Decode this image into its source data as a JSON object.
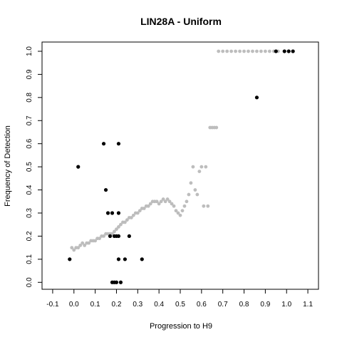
{
  "chart_data": {
    "type": "scatter",
    "title": "LIN28A - Uniform",
    "xlabel": "Progression to H9",
    "ylabel": "Frequency of Detection",
    "xlim": [
      -0.15,
      1.15
    ],
    "ylim": [
      -0.03,
      1.04
    ],
    "x_ticks": [
      "-0.1",
      "0.0",
      "0.1",
      "0.2",
      "0.3",
      "0.4",
      "0.5",
      "0.6",
      "0.7",
      "0.8",
      "0.9",
      "1.0",
      "1.1"
    ],
    "y_ticks": [
      "0.0",
      "0.1",
      "0.2",
      "0.3",
      "0.4",
      "0.5",
      "0.6",
      "0.7",
      "0.8",
      "0.9",
      "1.0"
    ],
    "grid": false,
    "legend": "none",
    "series": [
      {
        "color": "#bdbdbd",
        "points": [
          [
            -0.01,
            0.15
          ],
          [
            0.0,
            0.14
          ],
          [
            0.01,
            0.15
          ],
          [
            0.02,
            0.15
          ],
          [
            0.03,
            0.16
          ],
          [
            0.04,
            0.17
          ],
          [
            0.05,
            0.16
          ],
          [
            0.06,
            0.17
          ],
          [
            0.07,
            0.17
          ],
          [
            0.08,
            0.18
          ],
          [
            0.09,
            0.18
          ],
          [
            0.1,
            0.18
          ],
          [
            0.11,
            0.19
          ],
          [
            0.12,
            0.19
          ],
          [
            0.13,
            0.2
          ],
          [
            0.14,
            0.2
          ],
          [
            0.15,
            0.21
          ],
          [
            0.16,
            0.21
          ],
          [
            0.17,
            0.21
          ],
          [
            0.18,
            0.21
          ],
          [
            0.19,
            0.22
          ],
          [
            0.2,
            0.23
          ],
          [
            0.21,
            0.24
          ],
          [
            0.22,
            0.25
          ],
          [
            0.23,
            0.26
          ],
          [
            0.24,
            0.26
          ],
          [
            0.25,
            0.27
          ],
          [
            0.26,
            0.28
          ],
          [
            0.27,
            0.28
          ],
          [
            0.28,
            0.29
          ],
          [
            0.29,
            0.3
          ],
          [
            0.3,
            0.3
          ],
          [
            0.31,
            0.31
          ],
          [
            0.32,
            0.32
          ],
          [
            0.33,
            0.32
          ],
          [
            0.34,
            0.33
          ],
          [
            0.35,
            0.33
          ],
          [
            0.36,
            0.34
          ],
          [
            0.37,
            0.35
          ],
          [
            0.38,
            0.35
          ],
          [
            0.39,
            0.35
          ],
          [
            0.4,
            0.34
          ],
          [
            0.41,
            0.35
          ],
          [
            0.42,
            0.36
          ],
          [
            0.43,
            0.35
          ],
          [
            0.44,
            0.36
          ],
          [
            0.45,
            0.35
          ],
          [
            0.46,
            0.34
          ],
          [
            0.47,
            0.33
          ],
          [
            0.48,
            0.31
          ],
          [
            0.49,
            0.3
          ],
          [
            0.5,
            0.29
          ],
          [
            0.51,
            0.31
          ],
          [
            0.52,
            0.33
          ],
          [
            0.53,
            0.35
          ],
          [
            0.54,
            0.38
          ],
          [
            0.55,
            0.43
          ],
          [
            0.56,
            0.5
          ],
          [
            0.57,
            0.4
          ],
          [
            0.58,
            0.38
          ],
          [
            0.59,
            0.48
          ],
          [
            0.6,
            0.5
          ],
          [
            0.61,
            0.33
          ],
          [
            0.62,
            0.5
          ],
          [
            0.63,
            0.33
          ],
          [
            0.64,
            0.67
          ],
          [
            0.65,
            0.67
          ],
          [
            0.66,
            0.67
          ],
          [
            0.67,
            0.67
          ],
          [
            0.68,
            1.0
          ],
          [
            0.7,
            1.0
          ],
          [
            0.72,
            1.0
          ],
          [
            0.74,
            1.0
          ],
          [
            0.76,
            1.0
          ],
          [
            0.78,
            1.0
          ],
          [
            0.8,
            1.0
          ],
          [
            0.82,
            1.0
          ],
          [
            0.84,
            1.0
          ],
          [
            0.86,
            1.0
          ],
          [
            0.88,
            1.0
          ],
          [
            0.9,
            1.0
          ],
          [
            0.92,
            1.0
          ],
          [
            0.94,
            1.0
          ],
          [
            0.96,
            1.0
          ]
        ]
      },
      {
        "color": "#000000",
        "points": [
          [
            -0.02,
            0.1
          ],
          [
            0.02,
            0.5
          ],
          [
            0.14,
            0.6
          ],
          [
            0.21,
            0.6
          ],
          [
            0.15,
            0.4
          ],
          [
            0.16,
            0.3
          ],
          [
            0.18,
            0.3
          ],
          [
            0.21,
            0.3
          ],
          [
            0.17,
            0.2
          ],
          [
            0.19,
            0.2
          ],
          [
            0.2,
            0.2
          ],
          [
            0.21,
            0.2
          ],
          [
            0.26,
            0.2
          ],
          [
            0.21,
            0.1
          ],
          [
            0.24,
            0.1
          ],
          [
            0.32,
            0.1
          ],
          [
            0.18,
            0.0
          ],
          [
            0.19,
            0.0
          ],
          [
            0.2,
            0.0
          ],
          [
            0.22,
            0.0
          ],
          [
            0.86,
            0.8
          ],
          [
            0.95,
            1.0
          ],
          [
            0.99,
            1.0
          ],
          [
            1.01,
            1.0
          ],
          [
            1.03,
            1.0
          ]
        ]
      }
    ]
  }
}
